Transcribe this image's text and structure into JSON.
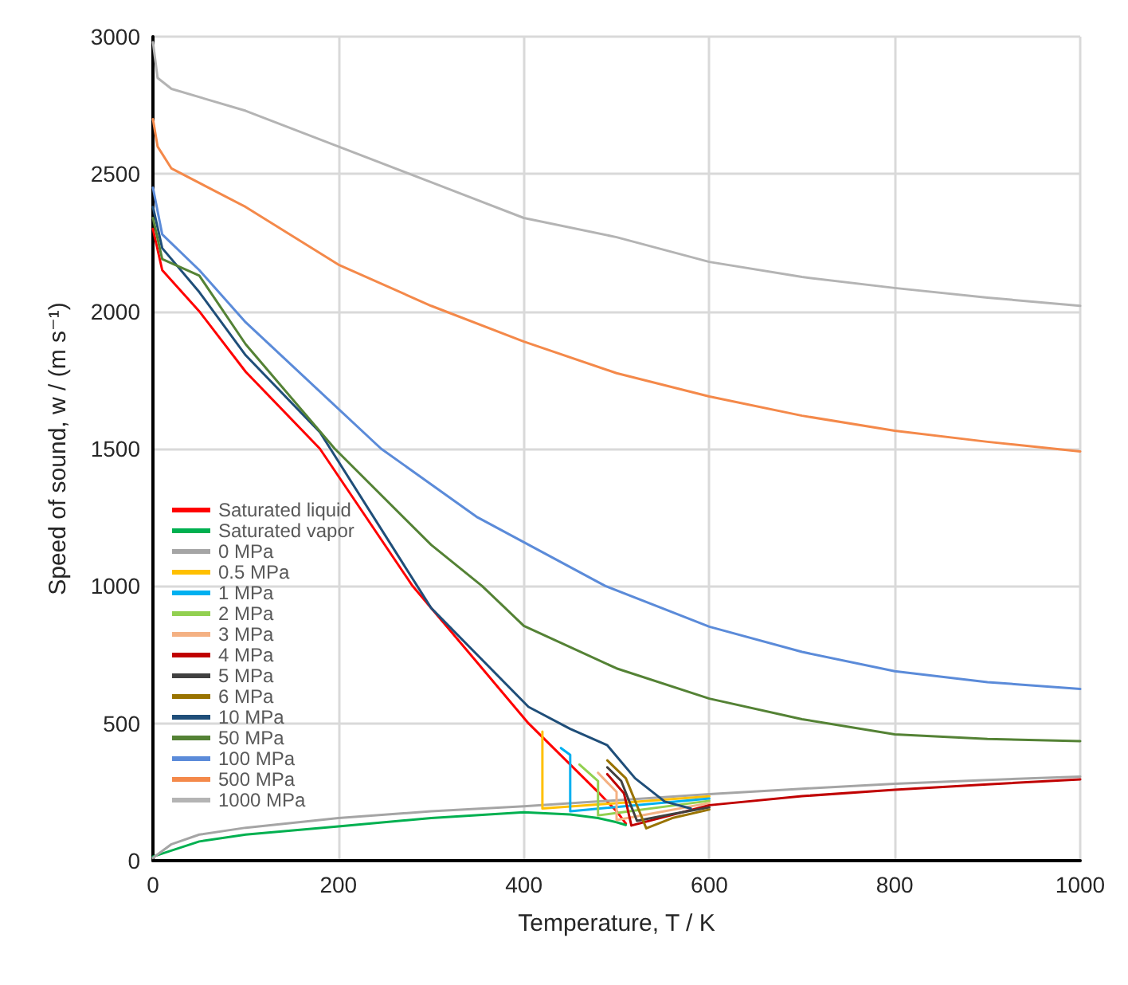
{
  "chart_data": {
    "type": "line",
    "xlabel": "Temperature, T / K",
    "ylabel": "Speed of sound, w / (m s⁻¹)",
    "xlim": [
      0,
      1000
    ],
    "xticks": [
      0,
      200,
      400,
      600,
      800,
      1000
    ],
    "ylim": [
      0,
      3000
    ],
    "yticks": [
      0,
      500,
      1000,
      1500,
      2000,
      2500,
      3000
    ],
    "grid": true,
    "legend": "bottom left",
    "marker": "none",
    "line_style": "solid",
    "series": [
      {
        "name": "Saturated liquid",
        "color": "#ff0000",
        "x": [
          0,
          10,
          50,
          100,
          180,
          280,
          350,
          405,
          450,
          480,
          500,
          510
        ],
        "values": [
          2300,
          2150,
          2000,
          1780,
          1500,
          1000,
          720,
          500,
          350,
          250,
          180,
          135
        ]
      },
      {
        "name": "Saturated vapor",
        "color": "#00b050",
        "x": [
          0,
          50,
          100,
          200,
          300,
          400,
          450,
          480,
          500,
          510
        ],
        "values": [
          15,
          70,
          95,
          125,
          155,
          176,
          168,
          155,
          140,
          130
        ]
      },
      {
        "name": "0 MPa",
        "color": "#a5a5a5",
        "x": [
          0,
          20,
          50,
          100,
          200,
          300,
          400,
          500,
          600,
          700,
          800,
          900,
          1000
        ],
        "values": [
          10,
          60,
          95,
          120,
          155,
          180,
          198,
          220,
          242,
          262,
          280,
          294,
          306
        ]
      },
      {
        "name": "0.5 MPa",
        "color": "#ffc000",
        "x": [
          420,
          420,
          600
        ],
        "values": [
          470,
          190,
          234
        ]
      },
      {
        "name": "1 MPa",
        "color": "#00b0f0",
        "x": [
          440,
          450,
          450,
          600
        ],
        "values": [
          410,
          385,
          180,
          226
        ]
      },
      {
        "name": "2 MPa",
        "color": "#92d050",
        "x": [
          460,
          480,
          480,
          600
        ],
        "values": [
          350,
          290,
          165,
          218
        ]
      },
      {
        "name": "3 MPa",
        "color": "#f4b183",
        "x": [
          480,
          500,
          500,
          600
        ],
        "values": [
          320,
          250,
          148,
          210
        ]
      },
      {
        "name": "4 MPa",
        "color": "#c00000",
        "x": [
          490,
          508,
          516,
          600,
          700,
          800,
          900,
          1000
        ],
        "values": [
          315,
          245,
          128,
          202,
          235,
          258,
          278,
          296
        ]
      },
      {
        "name": "5 MPa",
        "color": "#404040",
        "x": [
          490,
          505,
          522,
          560,
          600
        ],
        "values": [
          340,
          290,
          145,
          170,
          194
        ]
      },
      {
        "name": "6 MPa",
        "color": "#997300",
        "x": [
          490,
          510,
          532,
          560,
          600
        ],
        "values": [
          365,
          300,
          118,
          155,
          186
        ]
      },
      {
        "name": "10 MPa",
        "color": "#1f4e79",
        "x": [
          0,
          10,
          50,
          100,
          180,
          300,
          405,
          450,
          490,
          520,
          552,
          580
        ],
        "values": [
          2380,
          2230,
          2070,
          1840,
          1560,
          920,
          560,
          480,
          420,
          300,
          215,
          190
        ]
      },
      {
        "name": "50 MPa",
        "color": "#548235",
        "x": [
          0,
          10,
          50,
          100,
          196,
          300,
          355,
          400,
          500,
          600,
          700,
          800,
          900,
          1000
        ],
        "values": [
          2340,
          2190,
          2130,
          1880,
          1500,
          1150,
          1000,
          855,
          700,
          590,
          515,
          460,
          443,
          435
        ]
      },
      {
        "name": "100 MPa",
        "color": "#5b8bd9",
        "x": [
          0,
          10,
          50,
          100,
          246,
          350,
          488,
          600,
          700,
          800,
          900,
          1000
        ],
        "values": [
          2450,
          2280,
          2150,
          1960,
          1500,
          1250,
          1000,
          852,
          760,
          690,
          650,
          625
        ]
      },
      {
        "name": "500 MPa",
        "color": "#f4894a",
        "x": [
          0,
          5,
          20,
          100,
          200,
          300,
          400,
          500,
          600,
          700,
          800,
          900,
          1000
        ],
        "values": [
          2700,
          2600,
          2520,
          2380,
          2170,
          2020,
          1890,
          1775,
          1690,
          1620,
          1565,
          1525,
          1490
        ]
      },
      {
        "name": "1000 MPa",
        "color": "#b4b4b4",
        "x": [
          0,
          5,
          20,
          100,
          200,
          300,
          400,
          500,
          600,
          700,
          800,
          900,
          1000
        ],
        "values": [
          2980,
          2850,
          2810,
          2730,
          2600,
          2470,
          2340,
          2270,
          2180,
          2125,
          2085,
          2050,
          2020
        ]
      }
    ]
  }
}
